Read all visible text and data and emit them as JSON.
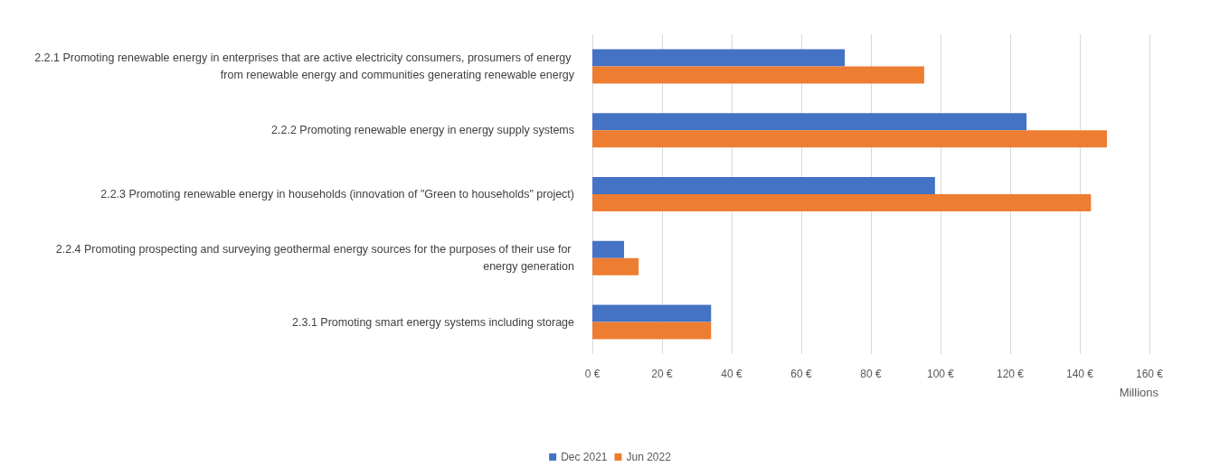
{
  "chart_data": {
    "type": "bar",
    "orientation": "horizontal",
    "categories": [
      "2.2.1 Promoting renewable energy in enterprises that are active electricity consumers, prosumers of energy from renewable energy and communities generating renewable energy",
      "2.2.2 Promoting renewable energy in energy supply systems",
      "2.2.3 Promoting renewable energy in households (innovation of \"Green to households\" project)",
      "2.2.4 Promoting prospecting and surveying geothermal energy sources for the purposes of their use for energy generation",
      "2.3.1 Promoting smart energy systems including storage"
    ],
    "series": [
      {
        "name": "Dec 2021",
        "color": "#4472c4",
        "values": [
          72.5,
          124.7,
          98.4,
          9.1,
          34.1
        ]
      },
      {
        "name": "Jun 2022",
        "color": "#ed7d31",
        "values": [
          95.3,
          147.8,
          143.2,
          13.3,
          34.1
        ]
      }
    ],
    "xlabel": "Millions",
    "xlim": [
      0,
      160
    ],
    "xticks": [
      {
        "value": 0,
        "label": "0 €"
      },
      {
        "value": 20,
        "label": "20 €"
      },
      {
        "value": 40,
        "label": "40 €"
      },
      {
        "value": 60,
        "label": "60 €"
      },
      {
        "value": 80,
        "label": "80 €"
      },
      {
        "value": 100,
        "label": "100 €"
      },
      {
        "value": 120,
        "label": "120 €"
      },
      {
        "value": 140,
        "label": "140 €"
      },
      {
        "value": 160,
        "label": "160 €"
      }
    ],
    "grid": "x",
    "legend": "bottom"
  }
}
